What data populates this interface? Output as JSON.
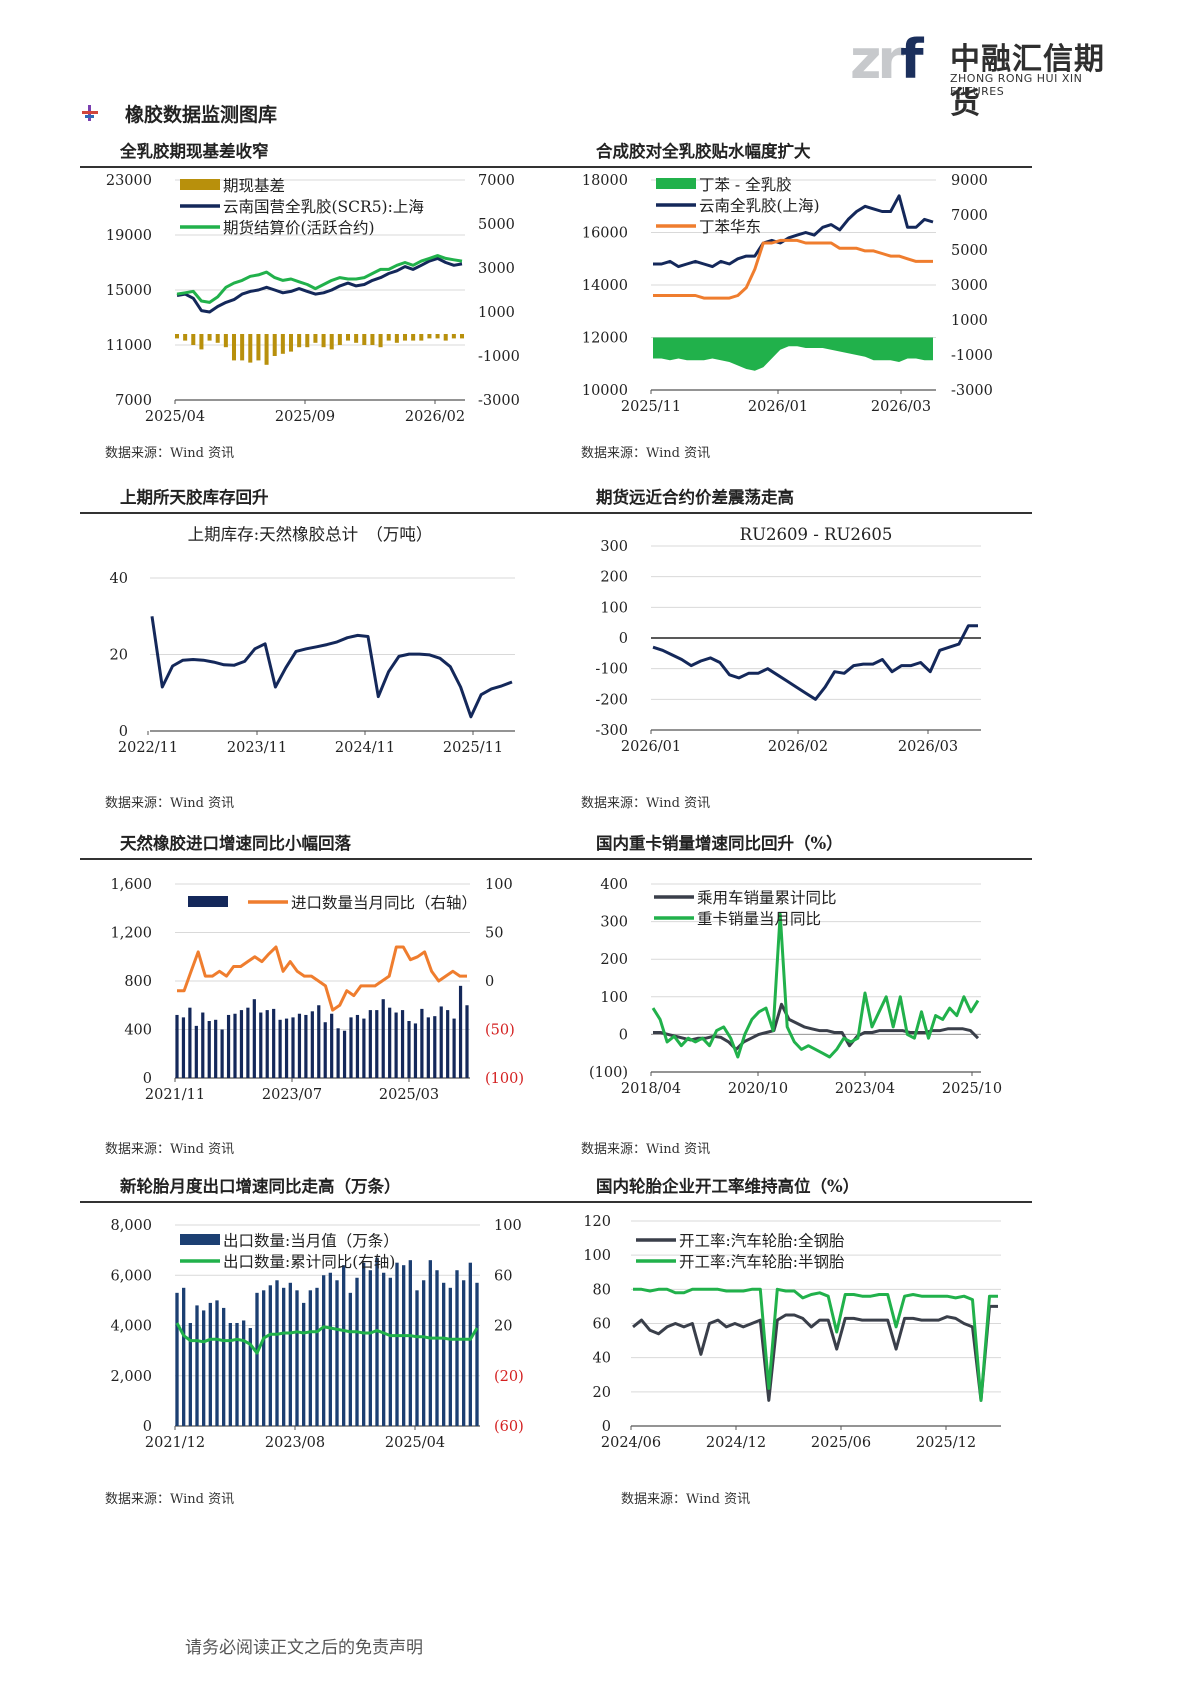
{
  "header": {
    "logo_mark_left": "zr",
    "logo_mark_right": "f",
    "company_cn": "中融汇信期货",
    "company_en": "ZHONG RONG HUI XIN FUTURES",
    "page_title": "橡胶数据监测图库"
  },
  "footer": {
    "disclaimer": "请务必阅读正文之后的免责声明"
  },
  "panels": [
    {
      "title": "全乳胶期现基差收窄",
      "source": "数据来源：Wind 资讯"
    },
    {
      "title": "合成胶对全乳胶贴水幅度扩大",
      "source": "数据来源：Wind 资讯"
    },
    {
      "title": "上期所天胶库存回升",
      "source": "数据来源：Wind 资讯"
    },
    {
      "title": "期货远近合约价差震荡走高",
      "source": "数据来源：Wind 资讯"
    },
    {
      "title": "天然橡胶进口增速同比小幅回落",
      "source": "数据来源：Wind 资讯"
    },
    {
      "title": "国内重卡销量增速同比回升（%）",
      "source": "数据来源：Wind 资讯"
    },
    {
      "title": "新轮胎月度出口增速同比走高（万条）",
      "source": "数据来源：Wind 资讯"
    },
    {
      "title": "国内轮胎企业开工率维持高位（%）",
      "source": "数据来源：Wind 资讯"
    }
  ],
  "chart_data": [
    {
      "type": "line",
      "left_ticks": [
        "23000",
        "19000",
        "15000",
        "11000",
        "7000"
      ],
      "left_lim": [
        7000,
        23000
      ],
      "right_ticks": [
        "7000",
        "5000",
        "3000",
        "1000",
        "-1000",
        "-3000"
      ],
      "right_lim": [
        -3000,
        7000
      ],
      "x_ticks": [
        "2025/04",
        "2025/09",
        "2026/02"
      ],
      "legend": [
        "期现基差",
        "云南国营全乳胶(SCR5):上海",
        "期货结算价(活跃合约)"
      ],
      "colors": [
        "#b8900c",
        "#14285a",
        "#21b14b"
      ],
      "series": [
        {
          "name": "云南国营全乳胶(SCR5):上海",
          "axis": "left",
          "values": [
            14600,
            14700,
            14400,
            13500,
            13400,
            13800,
            14100,
            14300,
            14700,
            14900,
            15000,
            15200,
            15000,
            14800,
            14900,
            15100,
            14900,
            14700,
            14800,
            15000,
            15300,
            15500,
            15300,
            15400,
            15700,
            15900,
            16200,
            16400,
            16700,
            16500,
            16800,
            17100,
            17300,
            17000,
            16800,
            16900
          ]
        },
        {
          "name": "期货结算价(活跃合约)",
          "axis": "left",
          "values": [
            14700,
            14800,
            14900,
            14200,
            14100,
            14500,
            15200,
            15500,
            15700,
            16000,
            16100,
            16300,
            15900,
            15700,
            15800,
            15600,
            15400,
            15100,
            15400,
            15700,
            15900,
            15800,
            15800,
            15900,
            16200,
            16500,
            16500,
            16800,
            17000,
            16800,
            17100,
            17300,
            17500,
            17300,
            17200,
            17100
          ]
        },
        {
          "name": "期现基差",
          "axis": "right",
          "type": "bar",
          "values": [
            -200,
            -300,
            -500,
            -700,
            -300,
            -400,
            -600,
            -1200,
            -1200,
            -1300,
            -1200,
            -1400,
            -1000,
            -900,
            -800,
            -600,
            -600,
            -400,
            -600,
            -700,
            -500,
            -300,
            -400,
            -500,
            -500,
            -600,
            -300,
            -400,
            -300,
            -300,
            -300,
            -200,
            -200,
            -300,
            -200,
            -200
          ]
        }
      ]
    },
    {
      "type": "line",
      "left_ticks": [
        "18000",
        "16000",
        "14000",
        "12000",
        "10000"
      ],
      "left_lim": [
        10000,
        18000
      ],
      "right_ticks": [
        "9000",
        "7000",
        "5000",
        "3000",
        "1000",
        "-1000",
        "-3000"
      ],
      "right_lim": [
        -3000,
        9000
      ],
      "x_ticks": [
        "2025/11",
        "2026/01",
        "2026/03"
      ],
      "legend": [
        "丁苯 - 全乳胶",
        "云南全乳胶(上海)",
        "丁苯华东"
      ],
      "colors": [
        "#21b14b",
        "#14285a",
        "#ef7d2e"
      ],
      "series": [
        {
          "name": "云南全乳胶(上海)",
          "axis": "left",
          "values": [
            14800,
            14800,
            14900,
            14700,
            14800,
            14900,
            14800,
            14700,
            14900,
            14800,
            15000,
            15100,
            15100,
            15600,
            15700,
            15600,
            15800,
            15900,
            16000,
            15900,
            16200,
            16300,
            16100,
            16500,
            16800,
            17000,
            16900,
            16800,
            16800,
            17400,
            16200,
            16200,
            16500,
            16400
          ]
        },
        {
          "name": "丁苯华东",
          "axis": "left",
          "values": [
            13600,
            13600,
            13600,
            13600,
            13600,
            13600,
            13500,
            13500,
            13500,
            13500,
            13600,
            13900,
            14600,
            15600,
            15600,
            15700,
            15700,
            15700,
            15600,
            15600,
            15600,
            15600,
            15400,
            15400,
            15400,
            15300,
            15300,
            15200,
            15100,
            15100,
            15000,
            14900,
            14900,
            14900
          ]
        },
        {
          "name": "丁苯 - 全乳胶",
          "axis": "right",
          "type": "area",
          "values": [
            -1200,
            -1200,
            -1300,
            -1200,
            -1300,
            -1300,
            -1300,
            -1200,
            -1300,
            -1400,
            -1600,
            -1800,
            -1900,
            -1700,
            -1200,
            -700,
            -500,
            -500,
            -600,
            -600,
            -600,
            -700,
            -800,
            -900,
            -1000,
            -1100,
            -1300,
            -1300,
            -1300,
            -1400,
            -1200,
            -1200,
            -1300,
            -1300
          ]
        }
      ]
    },
    {
      "type": "line",
      "title": "上期库存:天然橡胶总计　（万吨）",
      "y_ticks": [
        "40",
        "20",
        "0"
      ],
      "ylim": [
        0,
        40
      ],
      "x_ticks": [
        "2022/11",
        "2023/11",
        "2024/11",
        "2025/11"
      ],
      "colors": [
        "#14285a"
      ],
      "series": [
        {
          "name": "上期库存:天然橡胶总计",
          "values": [
            30,
            11.5,
            17,
            18.5,
            18.7,
            18.5,
            18.0,
            17.3,
            17.2,
            18.2,
            21.5,
            22.8,
            11.5,
            16.5,
            20.8,
            21.5,
            22,
            22.6,
            23.3,
            24.4,
            25,
            24.7,
            9,
            15.5,
            19.5,
            20.1,
            20.1,
            19.9,
            19,
            16.8,
            11.5,
            3.7,
            9.5,
            11,
            11.8,
            12.8
          ]
        }
      ]
    },
    {
      "type": "line",
      "title": "RU2609 - RU2605",
      "y_ticks": [
        "300",
        "200",
        "100",
        "0",
        "-100",
        "-200",
        "-300"
      ],
      "ylim": [
        -300,
        300
      ],
      "x_ticks": [
        "2026/01",
        "2026/02",
        "2026/03"
      ],
      "colors": [
        "#14285a"
      ],
      "series": [
        {
          "name": "RU2609 - RU2605",
          "values": [
            -30,
            -40,
            -55,
            -70,
            -90,
            -75,
            -65,
            -80,
            -120,
            -130,
            -115,
            -115,
            -100,
            -120,
            -140,
            -160,
            -180,
            -200,
            -160,
            -110,
            -115,
            -90,
            -85,
            -85,
            -70,
            -110,
            -90,
            -90,
            -80,
            -110,
            -40,
            -30,
            -20,
            40,
            40
          ]
        }
      ]
    },
    {
      "type": "bar",
      "left_ticks": [
        "1,600",
        "1,200",
        "800",
        "400",
        "0"
      ],
      "left_lim": [
        0,
        1600
      ],
      "right_ticks": [
        "100",
        "50",
        "0",
        "(50)",
        "(100)"
      ],
      "right_lim": [
        -100,
        100
      ],
      "x_ticks": [
        "2021/11",
        "2023/07",
        "2025/03"
      ],
      "legend": [
        "",
        "进口数量当月同比（右轴）"
      ],
      "colors": [
        "#14285a",
        "#ef7d2e"
      ],
      "series": [
        {
          "name": "",
          "axis": "left",
          "values": [
            520,
            500,
            580,
            430,
            540,
            470,
            480,
            400,
            520,
            530,
            560,
            580,
            650,
            540,
            560,
            570,
            480,
            490,
            500,
            530,
            520,
            550,
            600,
            460,
            530,
            410,
            390,
            500,
            520,
            490,
            560,
            560,
            650,
            580,
            540,
            560,
            470,
            450,
            570,
            500,
            510,
            590,
            560,
            490,
            760,
            600
          ]
        },
        {
          "name": "进口数量当月同比（右轴）",
          "axis": "right",
          "values": [
            -10,
            -10,
            10,
            30,
            5,
            5,
            10,
            5,
            15,
            15,
            20,
            25,
            20,
            28,
            35,
            10,
            20,
            10,
            5,
            5,
            0,
            -5,
            -30,
            -25,
            -10,
            -15,
            -5,
            -5,
            -5,
            0,
            5,
            35,
            35,
            22,
            25,
            30,
            10,
            0,
            5,
            10,
            5,
            5
          ]
        }
      ]
    },
    {
      "type": "line",
      "y_ticks": [
        "400",
        "300",
        "200",
        "100",
        "0",
        "(100)"
      ],
      "ylim": [
        -100,
        400
      ],
      "x_ticks": [
        "2018/04",
        "2020/10",
        "2023/04",
        "2025/10"
      ],
      "legend": [
        "乘用车销量累计同比",
        "重卡销量当月同比"
      ],
      "colors": [
        "#3a3f4a",
        "#21b14b"
      ],
      "series": [
        {
          "name": "乘用车销量累计同比",
          "values": [
            5,
            5,
            0,
            -5,
            -10,
            -15,
            -10,
            -10,
            -5,
            -8,
            -20,
            -40,
            -20,
            -10,
            0,
            5,
            10,
            80,
            40,
            30,
            20,
            15,
            10,
            10,
            5,
            5,
            -30,
            -5,
            5,
            5,
            10,
            10,
            10,
            10,
            5,
            5,
            5,
            10,
            10,
            15,
            15,
            15,
            10,
            -10
          ]
        },
        {
          "name": "重卡销量当月同比",
          "values": [
            70,
            40,
            -20,
            -5,
            -30,
            -10,
            -20,
            -10,
            -30,
            10,
            20,
            -10,
            -60,
            0,
            40,
            60,
            70,
            10,
            320,
            20,
            -20,
            -40,
            -30,
            -40,
            -50,
            -60,
            -40,
            -10,
            -20,
            -10,
            110,
            20,
            60,
            100,
            20,
            100,
            0,
            -10,
            60,
            -10,
            50,
            40,
            70,
            50,
            100,
            60,
            90
          ]
        }
      ]
    },
    {
      "type": "bar",
      "left_ticks": [
        "8,000",
        "6,000",
        "4,000",
        "2,000",
        "0"
      ],
      "left_lim": [
        0,
        8000
      ],
      "right_ticks": [
        "100",
        "60",
        "20",
        "(20)",
        "(60)"
      ],
      "right_lim": [
        -60,
        100
      ],
      "x_ticks": [
        "2021/12",
        "2023/08",
        "2025/04"
      ],
      "legend": [
        "出口数量:当月值（万条）",
        "出口数量:累计同比(右轴)"
      ],
      "colors": [
        "#1c3f72",
        "#21b14b"
      ],
      "series": [
        {
          "name": "出口数量:当月值（万条）",
          "axis": "left",
          "values": [
            5300,
            5500,
            4100,
            4800,
            4600,
            4900,
            5000,
            4700,
            4100,
            4100,
            4200,
            3900,
            5300,
            5400,
            5600,
            5800,
            5500,
            5700,
            5400,
            4900,
            5400,
            5500,
            6000,
            6100,
            5800,
            6400,
            5300,
            5900,
            6500,
            6200,
            6700,
            6100,
            5900,
            6500,
            6400,
            6600,
            5400,
            5800,
            6600,
            6200,
            5700,
            5500,
            6200,
            5800,
            6500,
            5700
          ]
        },
        {
          "name": "出口数量:累计同比(右轴)",
          "axis": "right",
          "values": [
            22,
            12,
            8,
            8,
            7,
            9,
            9,
            8,
            8,
            9,
            8,
            5,
            -2,
            10,
            13,
            13,
            14,
            14,
            15,
            14,
            15,
            15,
            19,
            18,
            17,
            16,
            15,
            15,
            14,
            14,
            16,
            14,
            12,
            12,
            12,
            12,
            11,
            11,
            10,
            10,
            10,
            9,
            9,
            9,
            9,
            18
          ]
        }
      ]
    },
    {
      "type": "line",
      "y_ticks": [
        "120",
        "100",
        "80",
        "60",
        "40",
        "20",
        "0"
      ],
      "ylim": [
        0,
        120
      ],
      "x_ticks": [
        "2024/06",
        "2024/12",
        "2025/06",
        "2025/12"
      ],
      "legend": [
        "开工率:汽车轮胎:全钢胎",
        "开工率:汽车轮胎:半钢胎"
      ],
      "colors": [
        "#3a3f4a",
        "#21b14b"
      ],
      "series": [
        {
          "name": "开工率:汽车轮胎:全钢胎",
          "values": [
            58,
            62,
            56,
            54,
            58,
            60,
            58,
            60,
            42,
            60,
            62,
            58,
            60,
            58,
            60,
            62,
            15,
            62,
            65,
            65,
            63,
            58,
            62,
            62,
            45,
            63,
            63,
            62,
            62,
            62,
            62,
            45,
            63,
            63,
            62,
            62,
            62,
            64,
            63,
            60,
            58,
            15,
            70,
            70
          ]
        },
        {
          "name": "开工率:汽车轮胎:半钢胎",
          "values": [
            80,
            80,
            79,
            80,
            80,
            78,
            78,
            80,
            80,
            80,
            80,
            79,
            79,
            79,
            80,
            80,
            22,
            80,
            79,
            79,
            75,
            77,
            78,
            76,
            55,
            77,
            77,
            76,
            76,
            77,
            77,
            58,
            76,
            77,
            76,
            76,
            76,
            76,
            75,
            76,
            74,
            15,
            76,
            76
          ]
        }
      ]
    }
  ]
}
